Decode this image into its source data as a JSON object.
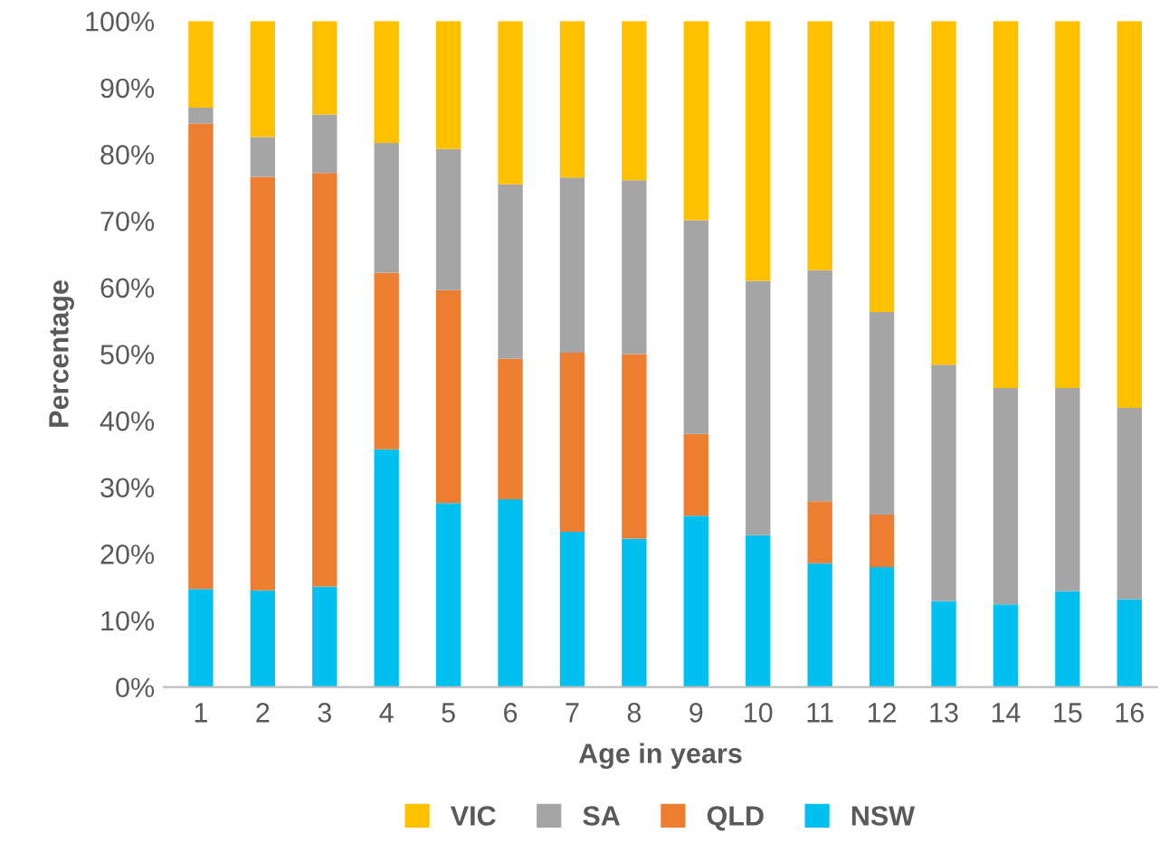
{
  "chart_data": {
    "type": "bar",
    "stacked": true,
    "xlabel": "Age in years",
    "ylabel": "Percentage",
    "categories": [
      "1",
      "2",
      "3",
      "4",
      "5",
      "6",
      "7",
      "8",
      "9",
      "10",
      "11",
      "12",
      "13",
      "14",
      "15",
      "16"
    ],
    "series": [
      {
        "name": "NSW",
        "color": "#00c0f0",
        "values": [
          14.7,
          14.5,
          15.1,
          35.7,
          27.6,
          28.2,
          23.3,
          22.3,
          25.7,
          22.8,
          18.6,
          18.0,
          12.9,
          12.4,
          14.4,
          13.2
        ]
      },
      {
        "name": "QLD",
        "color": "#ed7d31",
        "values": [
          69.9,
          62.1,
          62.1,
          26.5,
          32.0,
          21.1,
          26.9,
          27.7,
          12.3,
          0,
          9.3,
          7.9,
          0,
          0,
          0,
          0
        ]
      },
      {
        "name": "SA",
        "color": "#a5a5a5",
        "values": [
          2.4,
          6.0,
          8.8,
          19.5,
          21.2,
          26.2,
          26.3,
          26.1,
          32.1,
          38.2,
          34.7,
          30.4,
          35.5,
          32.5,
          30.5,
          28.7
        ]
      },
      {
        "name": "VIC",
        "color": "#ffc000",
        "values": [
          13.0,
          17.4,
          14.0,
          18.3,
          19.2,
          24.5,
          23.5,
          23.9,
          29.9,
          39.0,
          37.4,
          43.7,
          51.6,
          55.1,
          55.1,
          58.1
        ]
      }
    ],
    "ylim": [
      0,
      100
    ],
    "yticks": [
      {
        "value": 0,
        "label": "0%"
      },
      {
        "value": 10,
        "label": "10%"
      },
      {
        "value": 20,
        "label": "20%"
      },
      {
        "value": 30,
        "label": "30%"
      },
      {
        "value": 40,
        "label": "40%"
      },
      {
        "value": 50,
        "label": "50%"
      },
      {
        "value": 60,
        "label": "60%"
      },
      {
        "value": 70,
        "label": "70%"
      },
      {
        "value": 80,
        "label": "80%"
      },
      {
        "value": 90,
        "label": "90%"
      },
      {
        "value": 100,
        "label": "100%"
      }
    ],
    "grid": false,
    "legend": "bottom"
  }
}
